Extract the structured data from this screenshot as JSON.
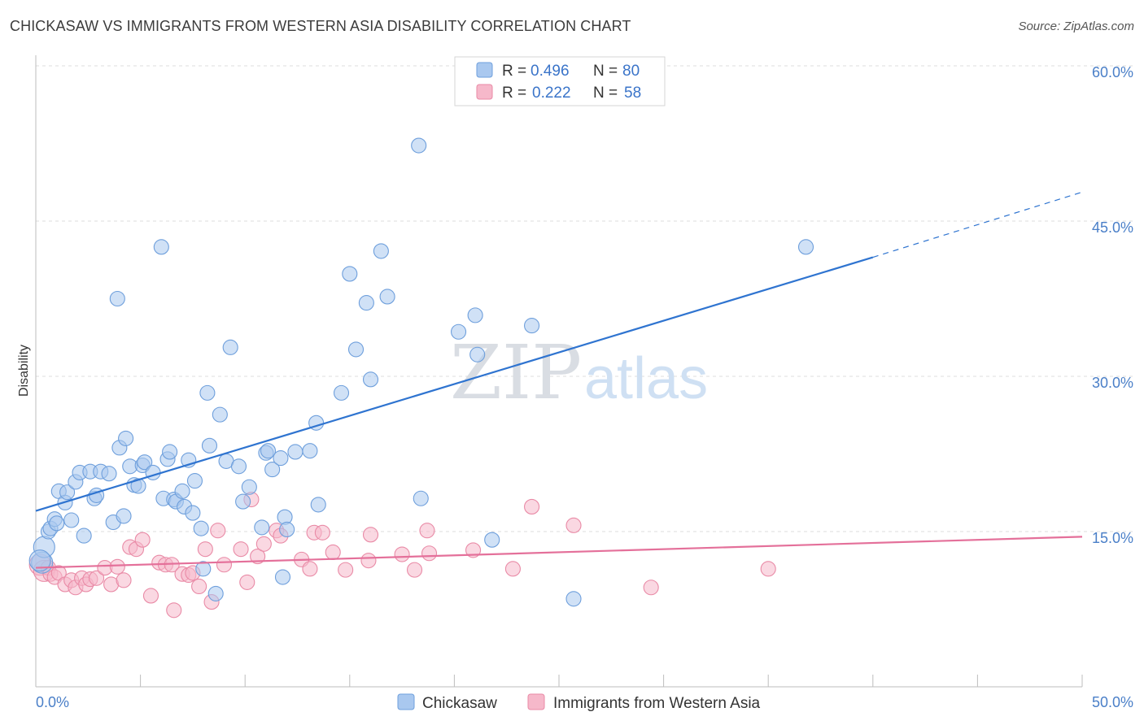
{
  "title": "CHICKASAW VS IMMIGRANTS FROM WESTERN ASIA DISABILITY CORRELATION CHART",
  "source": "Source: ZipAtlas.com",
  "watermark": {
    "part1": "ZIP",
    "part2": "atlas"
  },
  "colors": {
    "blue_fill": "#a9c8ef",
    "blue_stroke": "#6e9fdc",
    "blue_line": "#2f74d0",
    "pink_fill": "#f6b8ca",
    "pink_stroke": "#e98aa6",
    "pink_line": "#e4709a",
    "grid": "#dcdcdc",
    "tick_label": "#4a7fc8"
  },
  "legend": {
    "rows": [
      {
        "r_label": "R = ",
        "r_value": "0.496",
        "n_label": "N = ",
        "n_value": "80"
      },
      {
        "r_label": "R = ",
        "r_value": "0.222",
        "n_label": "N = ",
        "n_value": "58"
      }
    ]
  },
  "bottom_legend": {
    "series1": "Chickasaw",
    "series2": "Immigrants from Western Asia"
  },
  "chart_data": {
    "type": "scatter",
    "title": "CHICKASAW VS IMMIGRANTS FROM WESTERN ASIA DISABILITY CORRELATION CHART",
    "xlabel": "",
    "ylabel": "Disability",
    "xlim": [
      0,
      50
    ],
    "ylim": [
      0,
      60
    ],
    "x_tick_labels": [
      "0.0%",
      "50.0%"
    ],
    "y_ticks": [
      15,
      30,
      45,
      60
    ],
    "y_tick_labels": [
      "15.0%",
      "30.0%",
      "45.0%",
      "60.0%"
    ],
    "grid": true,
    "legend_placement": "top-center",
    "series": [
      {
        "name": "Chickasaw",
        "r": 0.496,
        "n": 80,
        "trend": {
          "x0": 0,
          "y0": 17.0,
          "x1": 40,
          "y1": 41.5,
          "dash_to_x": 50,
          "dash_to_y": 47.8
        },
        "points": [
          [
            0.3,
            12.0
          ],
          [
            0.4,
            13.5
          ],
          [
            0.6,
            15.0
          ],
          [
            0.7,
            15.3
          ],
          [
            0.9,
            16.2
          ],
          [
            1.0,
            15.8
          ],
          [
            1.1,
            18.9
          ],
          [
            1.4,
            17.8
          ],
          [
            1.5,
            18.8
          ],
          [
            1.7,
            16.1
          ],
          [
            1.9,
            19.8
          ],
          [
            2.1,
            20.7
          ],
          [
            2.3,
            14.6
          ],
          [
            2.6,
            20.8
          ],
          [
            2.8,
            18.2
          ],
          [
            2.9,
            18.5
          ],
          [
            3.1,
            20.8
          ],
          [
            3.5,
            20.6
          ],
          [
            3.7,
            15.9
          ],
          [
            3.9,
            37.5
          ],
          [
            4.0,
            23.1
          ],
          [
            4.2,
            16.5
          ],
          [
            4.3,
            24.0
          ],
          [
            4.5,
            21.3
          ],
          [
            4.7,
            19.5
          ],
          [
            4.9,
            19.4
          ],
          [
            5.1,
            21.4
          ],
          [
            5.2,
            21.7
          ],
          [
            5.6,
            20.7
          ],
          [
            6.0,
            42.5
          ],
          [
            6.1,
            18.2
          ],
          [
            6.3,
            22.0
          ],
          [
            6.4,
            22.7
          ],
          [
            6.6,
            18.1
          ],
          [
            6.7,
            17.9
          ],
          [
            7.0,
            18.9
          ],
          [
            7.1,
            17.4
          ],
          [
            7.3,
            21.9
          ],
          [
            7.5,
            16.8
          ],
          [
            7.6,
            19.9
          ],
          [
            7.9,
            15.3
          ],
          [
            8.0,
            11.4
          ],
          [
            8.2,
            28.4
          ],
          [
            8.3,
            23.3
          ],
          [
            8.6,
            9.0
          ],
          [
            8.8,
            26.3
          ],
          [
            9.1,
            21.8
          ],
          [
            9.3,
            32.8
          ],
          [
            9.7,
            21.3
          ],
          [
            9.9,
            17.9
          ],
          [
            10.2,
            19.3
          ],
          [
            10.8,
            15.4
          ],
          [
            11.0,
            22.6
          ],
          [
            11.1,
            22.8
          ],
          [
            11.3,
            21.0
          ],
          [
            11.7,
            22.1
          ],
          [
            11.8,
            10.6
          ],
          [
            11.9,
            16.4
          ],
          [
            12.0,
            15.2
          ],
          [
            12.4,
            22.7
          ],
          [
            13.1,
            22.8
          ],
          [
            13.4,
            25.5
          ],
          [
            13.5,
            17.6
          ],
          [
            14.6,
            28.4
          ],
          [
            15.0,
            39.9
          ],
          [
            15.3,
            32.6
          ],
          [
            15.8,
            37.1
          ],
          [
            16.0,
            29.7
          ],
          [
            16.5,
            42.1
          ],
          [
            16.8,
            37.7
          ],
          [
            18.3,
            52.3
          ],
          [
            18.4,
            18.2
          ],
          [
            20.2,
            34.3
          ],
          [
            21.0,
            35.9
          ],
          [
            21.1,
            32.1
          ],
          [
            21.8,
            14.2
          ],
          [
            23.7,
            34.9
          ],
          [
            25.7,
            8.5
          ],
          [
            36.8,
            42.5
          ],
          [
            0.2,
            12.2
          ]
        ]
      },
      {
        "name": "Immigrants from Western Asia",
        "r": 0.222,
        "n": 58,
        "trend": {
          "x0": 0,
          "y0": 11.5,
          "x1": 50,
          "y1": 14.5
        },
        "points": [
          [
            0.2,
            11.8
          ],
          [
            0.4,
            11.2
          ],
          [
            0.6,
            11.5
          ],
          [
            0.7,
            10.9
          ],
          [
            0.9,
            10.6
          ],
          [
            1.1,
            11.0
          ],
          [
            1.4,
            9.9
          ],
          [
            1.7,
            10.3
          ],
          [
            1.9,
            9.6
          ],
          [
            2.2,
            10.5
          ],
          [
            2.4,
            9.9
          ],
          [
            2.6,
            10.4
          ],
          [
            2.9,
            10.5
          ],
          [
            3.3,
            11.5
          ],
          [
            3.6,
            9.9
          ],
          [
            3.9,
            11.6
          ],
          [
            4.2,
            10.3
          ],
          [
            4.5,
            13.5
          ],
          [
            4.8,
            13.3
          ],
          [
            5.1,
            14.2
          ],
          [
            5.5,
            8.8
          ],
          [
            5.9,
            12.0
          ],
          [
            6.2,
            11.8
          ],
          [
            6.5,
            11.8
          ],
          [
            6.6,
            7.4
          ],
          [
            7.0,
            10.9
          ],
          [
            7.3,
            10.8
          ],
          [
            7.5,
            11.0
          ],
          [
            7.8,
            9.7
          ],
          [
            8.1,
            13.3
          ],
          [
            8.4,
            8.2
          ],
          [
            8.7,
            15.1
          ],
          [
            9.0,
            11.8
          ],
          [
            9.8,
            13.3
          ],
          [
            10.1,
            10.1
          ],
          [
            10.3,
            18.1
          ],
          [
            10.6,
            12.6
          ],
          [
            10.9,
            13.8
          ],
          [
            11.5,
            15.1
          ],
          [
            11.7,
            14.6
          ],
          [
            12.7,
            12.3
          ],
          [
            13.1,
            11.4
          ],
          [
            13.3,
            14.9
          ],
          [
            13.7,
            14.9
          ],
          [
            14.2,
            13.0
          ],
          [
            14.8,
            11.3
          ],
          [
            15.9,
            12.2
          ],
          [
            16.0,
            14.7
          ],
          [
            17.5,
            12.8
          ],
          [
            18.1,
            11.3
          ],
          [
            18.7,
            15.1
          ],
          [
            18.8,
            12.9
          ],
          [
            20.9,
            13.2
          ],
          [
            22.8,
            11.4
          ],
          [
            23.7,
            17.4
          ],
          [
            25.7,
            15.6
          ],
          [
            29.4,
            9.6
          ],
          [
            35.0,
            11.4
          ]
        ]
      }
    ]
  }
}
